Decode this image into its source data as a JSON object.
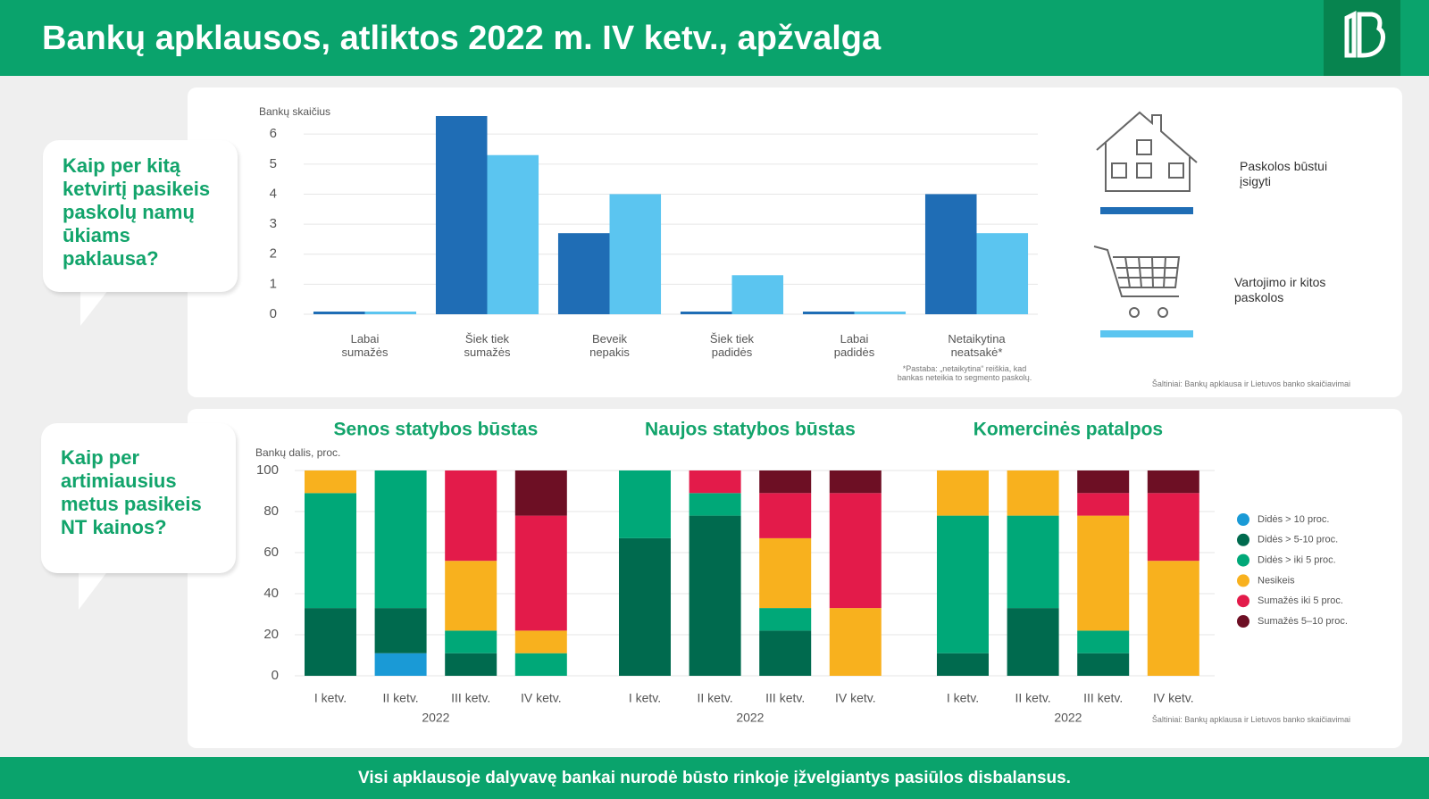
{
  "header": {
    "title": "Bankų apklausos, atliktos 2022 m. IV ketv., apžvalga"
  },
  "questions": [
    "Kaip per kitą ketvirtį pasikeis paskolų namų ūkiams paklausa?",
    "Kaip per artimiausius metus pasikeis NT kainos?"
  ],
  "chart_data": [
    {
      "type": "bar",
      "ylabel": "Bankų skaičius",
      "categories": [
        "Labai sumažės",
        "Šiek tiek sumažės",
        "Beveik nepakis",
        "Šiek tiek padidės",
        "Labai padidės",
        "Netaikytina neatsakė*"
      ],
      "series": [
        {
          "name": "Paskolos būstui įsigyti",
          "color": "#1f6db5",
          "values": [
            0,
            6.6,
            2.7,
            0,
            0,
            4.0
          ]
        },
        {
          "name": "Vartojimo ir kitos paskolos",
          "color": "#5bc5f0",
          "values": [
            0,
            5.3,
            4.0,
            1.3,
            0,
            2.7
          ]
        }
      ],
      "ylim": [
        0,
        6.6
      ],
      "yticks": [
        0,
        1,
        2,
        3,
        4,
        5,
        6
      ],
      "grid": true,
      "note": "*Pastaba: „netaikytina“ reiškia, kad bankas neteikia to segmento paskolų.",
      "source": "Šaltiniai: Bankų apklausa ir Lietuvos banko skaičiavimai"
    },
    {
      "type": "stacked_bar",
      "ylabel": "Bankų dalis, proc.",
      "ylim": [
        0,
        100
      ],
      "yticks": [
        0,
        20,
        40,
        60,
        80,
        100
      ],
      "grid": true,
      "legend": "right",
      "series": [
        {
          "name": "Didės > 10 proc.",
          "color": "#1a9ad6"
        },
        {
          "name": "Didės > 5-10 proc.",
          "color": "#006a4e"
        },
        {
          "name": "Didės > iki 5 proc.",
          "color": "#00a878"
        },
        {
          "name": "Nesikeis",
          "color": "#f8b11e"
        },
        {
          "name": "Sumažės iki 5 proc.",
          "color": "#e31b4a"
        },
        {
          "name": "Sumažės 5–10 proc.",
          "color": "#6d0f24"
        }
      ],
      "panels": [
        {
          "title": "Senos statybos būstas",
          "categories": [
            "I ketv.",
            "II ketv.",
            "III ketv.",
            "IV ketv."
          ],
          "xlabel": "2022",
          "series": [
            {
              "values": [
                0,
                11,
                0,
                0
              ]
            },
            {
              "values": [
                33,
                22,
                11,
                0
              ]
            },
            {
              "values": [
                56,
                67,
                11,
                11
              ]
            },
            {
              "values": [
                11,
                0,
                34,
                11
              ]
            },
            {
              "values": [
                0,
                0,
                44,
                56
              ]
            },
            {
              "values": [
                0,
                0,
                0,
                22
              ]
            }
          ]
        },
        {
          "title": "Naujos statybos būstas",
          "categories": [
            "I ketv.",
            "II ketv.",
            "III ketv.",
            "IV ketv."
          ],
          "xlabel": "2022",
          "series": [
            {
              "values": [
                0,
                0,
                0,
                0
              ]
            },
            {
              "values": [
                67,
                78,
                22,
                0
              ]
            },
            {
              "values": [
                33,
                11,
                11,
                0
              ]
            },
            {
              "values": [
                0,
                0,
                34,
                33
              ]
            },
            {
              "values": [
                0,
                11,
                22,
                56
              ]
            },
            {
              "values": [
                0,
                0,
                11,
                11
              ]
            }
          ]
        },
        {
          "title": "Komercinės patalpos",
          "categories": [
            "I ketv.",
            "II ketv.",
            "III ketv.",
            "IV ketv."
          ],
          "xlabel": "2022",
          "series": [
            {
              "values": [
                0,
                0,
                0,
                0
              ]
            },
            {
              "values": [
                11,
                33,
                11,
                0
              ]
            },
            {
              "values": [
                67,
                45,
                11,
                0
              ]
            },
            {
              "values": [
                22,
                22,
                56,
                56
              ]
            },
            {
              "values": [
                0,
                0,
                11,
                33
              ]
            },
            {
              "values": [
                0,
                0,
                11,
                11
              ]
            }
          ]
        }
      ],
      "source": "Šaltiniai: Bankų apklausa ir Lietuvos banko skaičiavimai"
    }
  ],
  "footer": "Visi apklausoje dalyvavę bankai nurodė būsto rinkoje įžvelgiantys pasiūlos disbalansus."
}
